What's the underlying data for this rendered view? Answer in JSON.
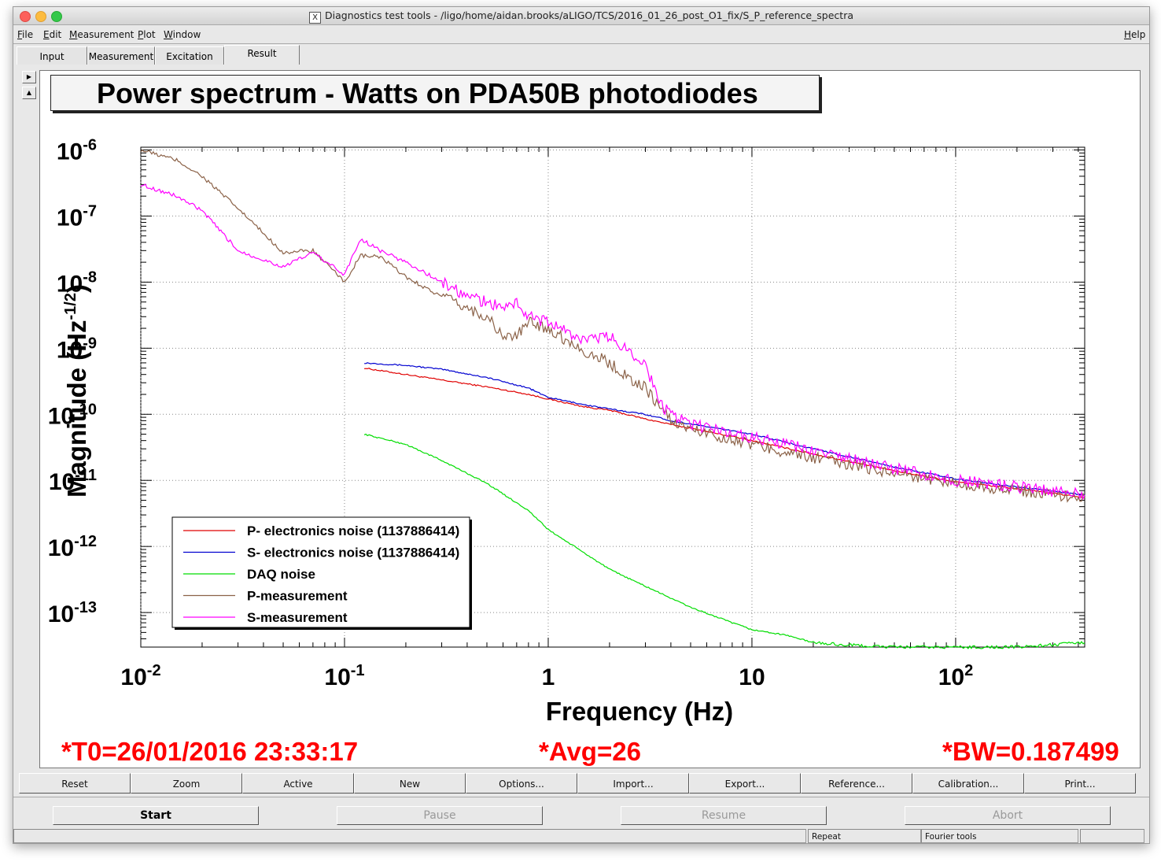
{
  "window": {
    "title": "Diagnostics test tools - /ligo/home/aidan.brooks/aLIGO/TCS/2016_01_26_post_O1_fix/S_P_reference_spectra"
  },
  "menu": {
    "file": "File",
    "edit": "Edit",
    "measurement": "Measurement",
    "plot": "Plot",
    "window": "Window",
    "help": "Help"
  },
  "tabs": [
    "Input",
    "Measurement",
    "Excitation",
    "Result"
  ],
  "plot_title": "Power spectrum - Watts on PDA50B photodiodes",
  "status": {
    "t0": "*T0=26/01/2016 23:33:17",
    "avg": "*Avg=26",
    "bw": "*BW=0.187499"
  },
  "buttons": [
    "Reset",
    "Zoom",
    "Active",
    "New",
    "Options...",
    "Import...",
    "Export...",
    "Reference...",
    "Calibration...",
    "Print..."
  ],
  "control": {
    "start": "Start",
    "pause": "Pause",
    "resume": "Resume",
    "abort": "Abort"
  },
  "statusbar": {
    "repeat": "Repeat",
    "fourier": "Fourier tools"
  },
  "colors": {
    "p_electronics": "#e00000",
    "s_electronics": "#0000d0",
    "daq": "#00dd00",
    "p_meas": "#8b6248",
    "s_meas": "#ff00ff",
    "status_red": "#ff0000"
  },
  "chart_data": {
    "type": "line",
    "xlabel": "Frequency (Hz)",
    "ylabel": "Magnitude (Hz-1/2)",
    "xscale": "log",
    "yscale": "log",
    "xlim": [
      0.01,
      430
    ],
    "ylim": [
      3e-14,
      1.1e-06
    ],
    "grid": true,
    "legend": "bottom-left",
    "x_ticks": [
      {
        "base": "10",
        "exp": "-2",
        "value": 0.01
      },
      {
        "base": "10",
        "exp": "-1",
        "value": 0.1
      },
      {
        "base": "1",
        "exp": "",
        "value": 1
      },
      {
        "base": "10",
        "exp": "",
        "value": 10
      },
      {
        "base": "10",
        "exp": "2",
        "value": 100
      }
    ],
    "y_ticks": [
      {
        "base": "10",
        "exp": "-6",
        "value": 1e-06
      },
      {
        "base": "10",
        "exp": "-7",
        "value": 1e-07
      },
      {
        "base": "10",
        "exp": "-8",
        "value": 1e-08
      },
      {
        "base": "10",
        "exp": "-9",
        "value": 1e-09
      },
      {
        "base": "10",
        "exp": "-10",
        "value": 1e-10
      },
      {
        "base": "10",
        "exp": "-11",
        "value": 1e-11
      },
      {
        "base": "10",
        "exp": "-12",
        "value": 1e-12
      },
      {
        "base": "10",
        "exp": "-13",
        "value": 1e-13
      }
    ],
    "series": [
      {
        "name": "P- electronics noise (1137886414)",
        "color": "#e00000",
        "x": [
          0.125,
          0.2,
          0.3,
          0.5,
          0.8,
          1.0,
          1.5,
          2.0,
          3.0,
          4.0,
          6.0,
          10,
          20,
          50,
          100,
          200,
          430
        ],
        "y": [
          5e-10,
          4e-10,
          3.3e-10,
          2.6e-10,
          2e-10,
          1.7e-10,
          1.3e-10,
          1.15e-10,
          8.5e-11,
          7e-11,
          5.5e-11,
          4e-11,
          2.5e-11,
          1.4e-11,
          9.5e-12,
          7.5e-12,
          5.5e-12
        ]
      },
      {
        "name": "S- electronics noise (1137886414)",
        "color": "#0000d0",
        "x": [
          0.125,
          0.2,
          0.3,
          0.5,
          0.8,
          1.0,
          1.5,
          2.0,
          3.0,
          4.0,
          6.0,
          10,
          20,
          50,
          100,
          200,
          430
        ],
        "y": [
          6e-10,
          5.5e-10,
          4.8e-10,
          3.6e-10,
          2.5e-10,
          1.8e-10,
          1.4e-10,
          1.2e-10,
          1e-10,
          8e-11,
          6.5e-11,
          5e-11,
          3e-11,
          1.6e-11,
          1.05e-11,
          8e-12,
          6e-12
        ]
      },
      {
        "name": "DAQ noise",
        "color": "#00dd00",
        "x": [
          0.125,
          0.2,
          0.3,
          0.5,
          0.8,
          1.0,
          1.5,
          2.0,
          3.0,
          5.0,
          8.0,
          10,
          15,
          20,
          30,
          50,
          100,
          200,
          430
        ],
        "y": [
          5e-11,
          3.5e-11,
          2e-11,
          9e-12,
          3.5e-12,
          1.8e-12,
          8e-13,
          4.5e-13,
          2.5e-13,
          1.2e-13,
          7e-14,
          5.5e-14,
          4.5e-14,
          3.5e-14,
          3.2e-14,
          3e-14,
          3e-14,
          3e-14,
          3.5e-14
        ]
      },
      {
        "name": "P-measurement",
        "color": "#8b6248",
        "x": [
          0.01,
          0.015,
          0.02,
          0.03,
          0.05,
          0.07,
          0.1,
          0.12,
          0.15,
          0.2,
          0.3,
          0.4,
          0.5,
          0.6,
          0.7,
          0.8,
          1.0,
          1.5,
          2.0,
          2.5,
          3.0,
          4.0,
          5.0,
          10,
          20,
          50,
          100,
          200,
          430
        ],
        "y": [
          1e-06,
          7e-07,
          4e-07,
          1.3e-07,
          2.8e-08,
          3e-08,
          1e-08,
          2.5e-08,
          2.4e-08,
          1.2e-08,
          6e-09,
          4e-09,
          3e-09,
          1.5e-09,
          1.5e-09,
          2.5e-09,
          2e-09,
          9e-10,
          6e-10,
          3.5e-10,
          2.5e-10,
          8e-11,
          6e-11,
          3.5e-11,
          2.2e-11,
          1.3e-11,
          9e-12,
          7e-12,
          5.5e-12
        ]
      },
      {
        "name": "S-measurement",
        "color": "#ff00ff",
        "x": [
          0.01,
          0.015,
          0.02,
          0.03,
          0.05,
          0.07,
          0.1,
          0.12,
          0.15,
          0.2,
          0.3,
          0.4,
          0.5,
          0.6,
          0.7,
          0.8,
          1.0,
          1.5,
          2.0,
          2.5,
          3.0,
          3.5,
          4.0,
          5.0,
          10,
          20,
          50,
          100,
          200,
          430
        ],
        "y": [
          3e-07,
          2e-07,
          1.2e-07,
          3e-08,
          1.7e-08,
          2.8e-08,
          1.3e-08,
          4.5e-08,
          3e-08,
          2e-08,
          1e-08,
          6e-09,
          5e-09,
          4e-09,
          5e-09,
          3e-09,
          2.5e-09,
          1.3e-09,
          1.5e-09,
          9e-10,
          6e-10,
          1.5e-10,
          1e-10,
          7e-11,
          4.5e-11,
          2.8e-11,
          1.5e-11,
          1e-11,
          8e-12,
          6e-12
        ]
      }
    ]
  }
}
